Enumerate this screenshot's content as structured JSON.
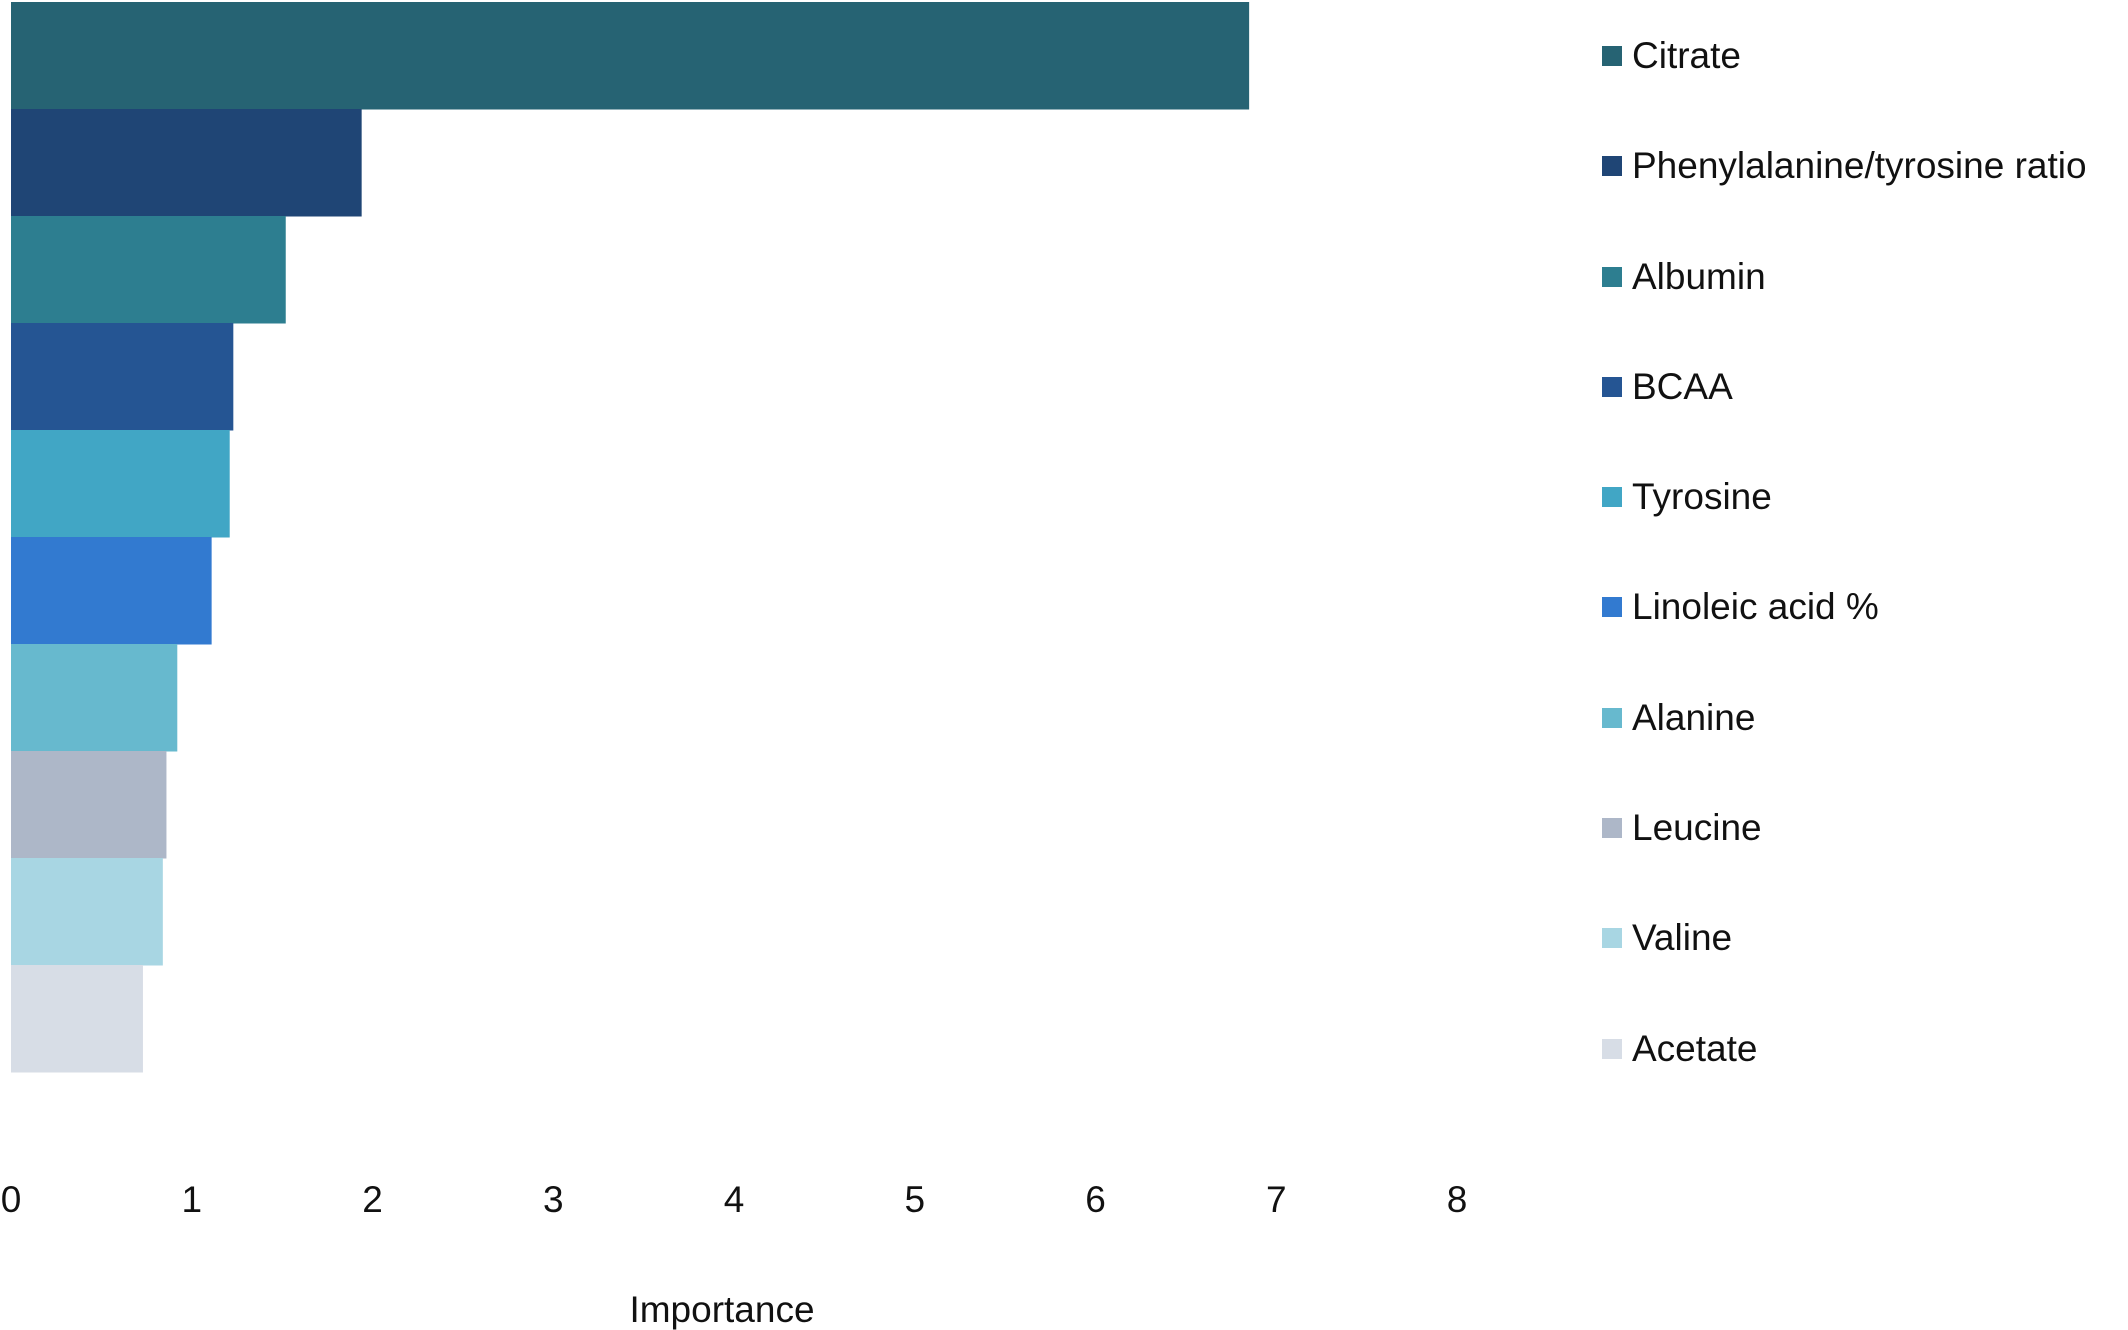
{
  "chart_data": {
    "type": "bar",
    "orientation": "horizontal",
    "categories": [
      "Citrate",
      "Phenylalanine/tyrosine ratio",
      "Albumin",
      "BCAA",
      "Tyrosine",
      "Linoleic acid %",
      "Alanine",
      "Leucine",
      "Valine",
      "Acetate"
    ],
    "values": [
      6.85,
      1.94,
      1.52,
      1.23,
      1.21,
      1.11,
      0.92,
      0.86,
      0.84,
      0.73
    ],
    "colors": [
      "#266373",
      "#1f4575",
      "#2d7e90",
      "#255593",
      "#41a6c5",
      "#327ad0",
      "#67b9ce",
      "#adb7c8",
      "#a8d6e3",
      "#d7dde6"
    ],
    "xlabel": "Importance",
    "xlim": [
      0,
      8
    ],
    "xticks": [
      "0",
      "1",
      "2",
      "3",
      "4",
      "5",
      "6",
      "7",
      "8"
    ],
    "grid": false,
    "legend_position": "right"
  }
}
